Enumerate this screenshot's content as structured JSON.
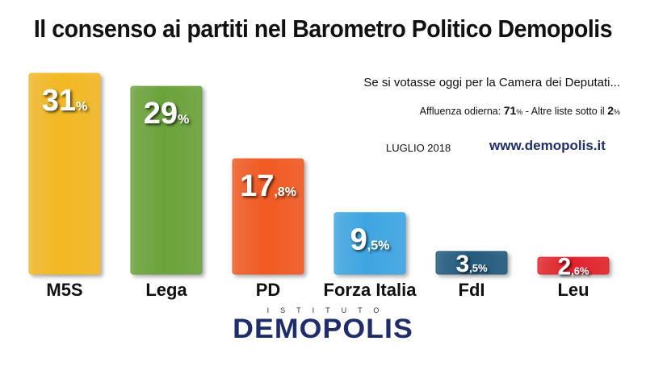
{
  "header": {
    "title": "Il consenso ai partiti nel Barometro Politico Demopolis"
  },
  "info": {
    "subtitle": "Se si votasse oggi per la Camera dei Deputati...",
    "turnout_prefix": "Affluenza odierna: ",
    "turnout_value": "71",
    "turnout_unit": "%",
    "turnout_middle": " - Altre liste sotto il ",
    "threshold_value": "2",
    "threshold_unit": "%",
    "month": "LUGLIO 2018",
    "website": "www.demopolis.it"
  },
  "logo": {
    "top": "ISTITUTO",
    "main": "DEMOPOLIS"
  },
  "chart_data": {
    "type": "bar",
    "categories": [
      "M5S",
      "Lega",
      "PD",
      "Forza Italia",
      "FdI",
      "Leu"
    ],
    "values": [
      31,
      29,
      17.8,
      9.5,
      3.5,
      2.6
    ],
    "value_labels": [
      {
        "main": "31",
        "small": "%"
      },
      {
        "main": "29",
        "small": "%"
      },
      {
        "main": "17",
        "small": ",8%"
      },
      {
        "main": "9",
        "small": ",5%"
      },
      {
        "main": "3",
        "small": ",5%"
      },
      {
        "main": "2",
        "small": ",6%"
      }
    ],
    "colors": [
      "#f3b824",
      "#6ba33a",
      "#f25a22",
      "#3ea6e3",
      "#215a7e",
      "#e3232a"
    ],
    "ylim": [
      0,
      31
    ],
    "grid": false,
    "legend": "none"
  }
}
